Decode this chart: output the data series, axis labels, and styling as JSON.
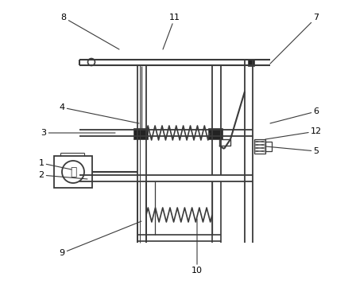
{
  "bg_color": "#ffffff",
  "line_color": "#3a3a3a",
  "label_color": "#000000",
  "figsize": [
    4.43,
    3.77
  ],
  "dpi": 100
}
